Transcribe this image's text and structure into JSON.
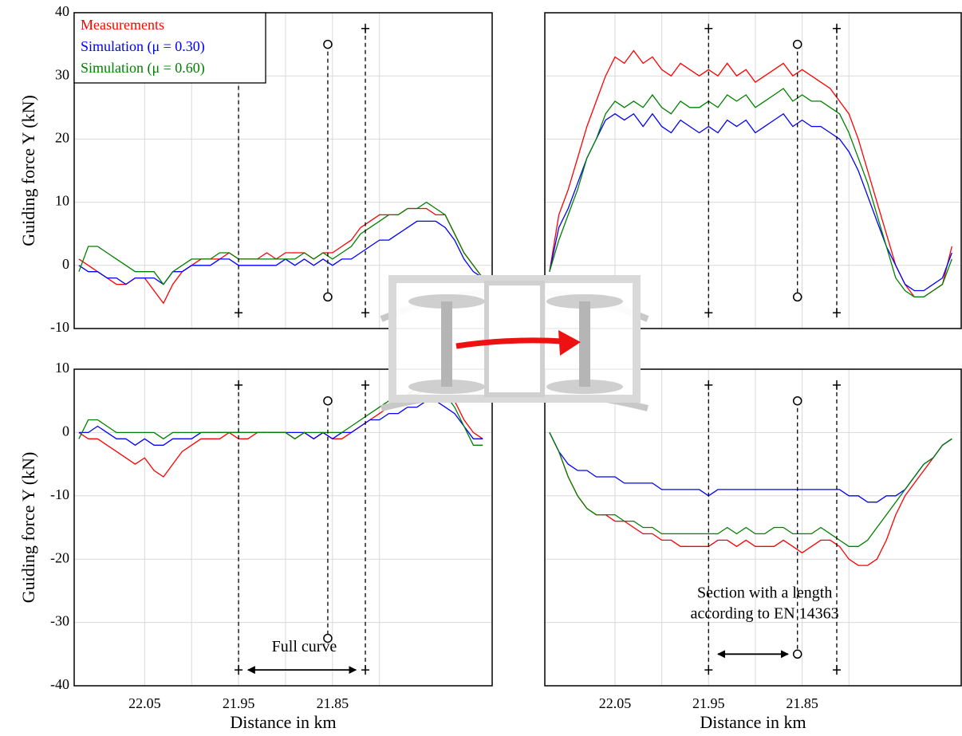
{
  "chart_data": [
    {
      "type": "line",
      "ylabel": "Guiding force Y (kN)",
      "legend": "upper left",
      "xlim": [
        22.125,
        21.68
      ],
      "ylim": [
        -10,
        40
      ],
      "xticks": [
        22.05,
        21.95,
        21.85
      ],
      "xgrid_minor": [
        22.0,
        21.9,
        21.8
      ],
      "yticks": [
        -10,
        0,
        10,
        20,
        30,
        40
      ],
      "show_xtick_labels": false,
      "show_ytick_labels": true,
      "grid": true,
      "x": [
        22.12,
        22.11,
        22.1,
        22.09,
        22.08,
        22.07,
        22.06,
        22.05,
        22.04,
        22.03,
        22.02,
        22.01,
        22.0,
        21.99,
        21.98,
        21.97,
        21.96,
        21.95,
        21.94,
        21.93,
        21.92,
        21.91,
        21.9,
        21.89,
        21.88,
        21.87,
        21.86,
        21.85,
        21.84,
        21.83,
        21.82,
        21.81,
        21.8,
        21.79,
        21.78,
        21.77,
        21.76,
        21.75,
        21.74,
        21.73,
        21.72,
        21.71,
        21.7,
        21.69
      ],
      "series": [
        {
          "name": "Measurements",
          "color": "#ff0000",
          "values": [
            1,
            0,
            -1,
            -2,
            -3,
            -3,
            -2,
            -2,
            -4,
            -6,
            -3,
            -1,
            0,
            1,
            1,
            1,
            2,
            1,
            1,
            1,
            2,
            1,
            2,
            2,
            2,
            1,
            2,
            2,
            3,
            4,
            6,
            7,
            8,
            8,
            8,
            9,
            9,
            9,
            8,
            8,
            5,
            2,
            0,
            -2
          ]
        },
        {
          "name": "Simulation (μ = 0.30)",
          "color": "#0000ff",
          "values": [
            0,
            -1,
            -1,
            -2,
            -2,
            -3,
            -2,
            -2,
            -2,
            -3,
            -1,
            -1,
            0,
            0,
            0,
            1,
            1,
            0,
            0,
            0,
            0,
            0,
            1,
            0,
            1,
            0,
            1,
            0,
            1,
            1,
            2,
            3,
            4,
            4,
            5,
            6,
            7,
            7,
            7,
            6,
            4,
            1,
            -1,
            -2
          ]
        },
        {
          "name": "Simulation (μ = 0.60)",
          "color": "#008000",
          "values": [
            -1,
            3,
            3,
            2,
            1,
            0,
            -1,
            -1,
            -1,
            -3,
            -1,
            0,
            1,
            1,
            1,
            2,
            2,
            1,
            1,
            1,
            1,
            1,
            1,
            1,
            2,
            1,
            2,
            1,
            2,
            3,
            5,
            6,
            7,
            8,
            8,
            9,
            9,
            10,
            9,
            8,
            5,
            2,
            0,
            -2
          ]
        }
      ],
      "markers": [
        {
          "x": 21.95,
          "y": [
            37.5,
            -7.5
          ],
          "end": "plus"
        },
        {
          "x": 21.855,
          "y": [
            35,
            -5
          ],
          "end": "circle"
        },
        {
          "x": 21.815,
          "y": [
            37.5,
            -7.5
          ],
          "end": "plus"
        }
      ]
    },
    {
      "type": "line",
      "xlim": [
        22.125,
        21.68
      ],
      "ylim": [
        -10,
        40
      ],
      "xticks": [
        22.05,
        21.95,
        21.85
      ],
      "xgrid_minor": [
        22.0,
        21.9,
        21.8
      ],
      "yticks": [
        -10,
        0,
        10,
        20,
        30,
        40
      ],
      "show_xtick_labels": false,
      "show_ytick_labels": false,
      "grid": true,
      "x": [
        22.12,
        22.11,
        22.1,
        22.09,
        22.08,
        22.07,
        22.06,
        22.05,
        22.04,
        22.03,
        22.02,
        22.01,
        22.0,
        21.99,
        21.98,
        21.97,
        21.96,
        21.95,
        21.94,
        21.93,
        21.92,
        21.91,
        21.9,
        21.89,
        21.88,
        21.87,
        21.86,
        21.85,
        21.84,
        21.83,
        21.82,
        21.81,
        21.8,
        21.79,
        21.78,
        21.77,
        21.76,
        21.75,
        21.74,
        21.73,
        21.72,
        21.71,
        21.7,
        21.69
      ],
      "series": [
        {
          "color": "#ff0000",
          "values": [
            -1,
            8,
            12,
            17,
            22,
            26,
            30,
            33,
            32,
            34,
            32,
            33,
            31,
            30,
            32,
            31,
            30,
            31,
            30,
            32,
            30,
            31,
            29,
            30,
            31,
            32,
            30,
            31,
            30,
            29,
            28,
            26,
            24,
            20,
            15,
            10,
            5,
            0,
            -3,
            -5,
            -5,
            -4,
            -3,
            3
          ]
        },
        {
          "color": "#0000ff",
          "values": [
            -1,
            6,
            9,
            13,
            17,
            20,
            23,
            24,
            23,
            24,
            22,
            24,
            22,
            21,
            23,
            22,
            21,
            22,
            21,
            23,
            22,
            23,
            21,
            22,
            23,
            24,
            22,
            23,
            22,
            22,
            21,
            20,
            18,
            15,
            11,
            7,
            3,
            0,
            -3,
            -4,
            -4,
            -3,
            -2,
            2
          ]
        },
        {
          "color": "#008000",
          "values": [
            -1,
            4,
            8,
            12,
            17,
            20,
            24,
            26,
            25,
            26,
            25,
            27,
            25,
            24,
            26,
            25,
            25,
            26,
            25,
            27,
            26,
            27,
            25,
            26,
            27,
            28,
            26,
            27,
            26,
            26,
            25,
            24,
            21,
            17,
            13,
            8,
            3,
            -2,
            -4,
            -5,
            -5,
            -4,
            -3,
            1
          ]
        }
      ],
      "markers": [
        {
          "x": 21.95,
          "y": [
            37.5,
            -7.5
          ],
          "end": "plus"
        },
        {
          "x": 21.855,
          "y": [
            35,
            -5
          ],
          "end": "circle"
        },
        {
          "x": 21.813,
          "y": [
            37.5,
            -7.5
          ],
          "end": "plus"
        }
      ]
    },
    {
      "type": "line",
      "ylabel": "Guiding force Y (kN)",
      "xlabel": "Distance in km",
      "xlim": [
        22.125,
        21.68
      ],
      "ylim": [
        -40,
        10
      ],
      "xticks": [
        22.05,
        21.95,
        21.85
      ],
      "xgrid_minor": [
        22.0,
        21.9,
        21.8
      ],
      "yticks": [
        -40,
        -30,
        -20,
        -10,
        0,
        10
      ],
      "show_xtick_labels": true,
      "show_ytick_labels": true,
      "grid": true,
      "x": [
        22.12,
        22.11,
        22.1,
        22.09,
        22.08,
        22.07,
        22.06,
        22.05,
        22.04,
        22.03,
        22.02,
        22.01,
        22.0,
        21.99,
        21.98,
        21.97,
        21.96,
        21.95,
        21.94,
        21.93,
        21.92,
        21.91,
        21.9,
        21.89,
        21.88,
        21.87,
        21.86,
        21.85,
        21.84,
        21.83,
        21.82,
        21.81,
        21.8,
        21.79,
        21.78,
        21.77,
        21.76,
        21.75,
        21.74,
        21.73,
        21.72,
        21.71,
        21.7,
        21.69
      ],
      "series": [
        {
          "color": "#ff0000",
          "values": [
            0,
            -1,
            -1,
            -2,
            -3,
            -4,
            -5,
            -4,
            -6,
            -7,
            -5,
            -3,
            -2,
            -1,
            -1,
            -1,
            0,
            -1,
            -1,
            0,
            0,
            0,
            0,
            -1,
            0,
            -1,
            0,
            -1,
            -1,
            0,
            1,
            2,
            3,
            4,
            5,
            6,
            7,
            7,
            8,
            7,
            5,
            2,
            0,
            -1
          ]
        },
        {
          "color": "#0000ff",
          "values": [
            0,
            0,
            1,
            0,
            -1,
            -1,
            -2,
            -1,
            -2,
            -2,
            -1,
            -1,
            -1,
            0,
            0,
            0,
            0,
            0,
            0,
            0,
            0,
            0,
            0,
            0,
            0,
            -1,
            0,
            -1,
            0,
            0,
            1,
            2,
            2,
            3,
            3,
            4,
            4,
            5,
            5,
            4,
            3,
            1,
            -1,
            -1
          ]
        },
        {
          "color": "#008000",
          "values": [
            -1,
            2,
            2,
            1,
            0,
            0,
            0,
            0,
            0,
            -1,
            0,
            0,
            0,
            0,
            0,
            0,
            0,
            0,
            0,
            0,
            0,
            0,
            0,
            -1,
            0,
            0,
            0,
            0,
            0,
            1,
            2,
            3,
            4,
            5,
            5,
            6,
            6,
            7,
            7,
            6,
            4,
            1,
            -2,
            -2
          ]
        }
      ],
      "markers": [
        {
          "x": 21.95,
          "y": [
            7.5,
            -37.5
          ],
          "end": "plus"
        },
        {
          "x": 21.855,
          "y": [
            5,
            -32.5
          ],
          "end": "circle"
        },
        {
          "x": 21.815,
          "y": [
            7.5,
            -37.5
          ],
          "end": "plus"
        }
      ],
      "annotations": [
        {
          "text": [
            "Full curve"
          ],
          "x": 21.88,
          "y": -34,
          "arrow": [
            21.94,
            21.825
          ],
          "arrow_y": -37.5
        }
      ]
    },
    {
      "type": "line",
      "xlabel": "Distance in km",
      "xlim": [
        22.125,
        21.68
      ],
      "ylim": [
        -40,
        10
      ],
      "xticks": [
        22.05,
        21.95,
        21.85
      ],
      "xgrid_minor": [
        22.0,
        21.9,
        21.8
      ],
      "yticks": [
        -40,
        -30,
        -20,
        -10,
        0,
        10
      ],
      "show_xtick_labels": true,
      "show_ytick_labels": false,
      "grid": true,
      "x": [
        22.12,
        22.11,
        22.1,
        22.09,
        22.08,
        22.07,
        22.06,
        22.05,
        22.04,
        22.03,
        22.02,
        22.01,
        22.0,
        21.99,
        21.98,
        21.97,
        21.96,
        21.95,
        21.94,
        21.93,
        21.92,
        21.91,
        21.9,
        21.89,
        21.88,
        21.87,
        21.86,
        21.85,
        21.84,
        21.83,
        21.82,
        21.81,
        21.8,
        21.79,
        21.78,
        21.77,
        21.76,
        21.75,
        21.74,
        21.73,
        21.72,
        21.71,
        21.7,
        21.69
      ],
      "series": [
        {
          "color": "#ff0000",
          "values": [
            0,
            -3,
            -7,
            -10,
            -12,
            -13,
            -13,
            -14,
            -14,
            -15,
            -16,
            -16,
            -17,
            -17,
            -18,
            -18,
            -18,
            -18,
            -17,
            -17,
            -18,
            -17,
            -18,
            -18,
            -18,
            -17,
            -18,
            -19,
            -18,
            -17,
            -17,
            -18,
            -20,
            -21,
            -21,
            -20,
            -17,
            -13,
            -10,
            -8,
            -6,
            -4,
            -2,
            -1
          ]
        },
        {
          "color": "#0000ff",
          "values": [
            0,
            -3,
            -5,
            -6,
            -6,
            -7,
            -7,
            -7,
            -8,
            -8,
            -8,
            -8,
            -9,
            -9,
            -9,
            -9,
            -9,
            -10,
            -9,
            -9,
            -9,
            -9,
            -9,
            -9,
            -9,
            -9,
            -9,
            -9,
            -9,
            -9,
            -9,
            -9,
            -10,
            -10,
            -11,
            -11,
            -10,
            -10,
            -9,
            -7,
            -5,
            -4,
            -2,
            -1
          ]
        },
        {
          "color": "#008000",
          "values": [
            0,
            -3,
            -7,
            -10,
            -12,
            -13,
            -13,
            -13,
            -14,
            -14,
            -15,
            -15,
            -16,
            -16,
            -16,
            -16,
            -16,
            -16,
            -16,
            -15,
            -16,
            -15,
            -16,
            -16,
            -15,
            -15,
            -16,
            -16,
            -16,
            -15,
            -16,
            -17,
            -18,
            -18,
            -17,
            -15,
            -13,
            -11,
            -9,
            -7,
            -5,
            -4,
            -2,
            -1
          ]
        }
      ],
      "markers": [
        {
          "x": 21.95,
          "y": [
            7.5,
            -37.5
          ],
          "end": "plus"
        },
        {
          "x": 21.855,
          "y": [
            5,
            -35
          ],
          "end": "circle"
        },
        {
          "x": 21.813,
          "y": [
            7.5,
            -37.5
          ],
          "end": "plus"
        }
      ],
      "annotations": [
        {
          "text": [
            "Section with a length",
            "according to EN 14363"
          ],
          "x": 21.89,
          "y": -25.5,
          "arrow": [
            21.94,
            21.865
          ],
          "arrow_y": -35
        }
      ]
    }
  ]
}
